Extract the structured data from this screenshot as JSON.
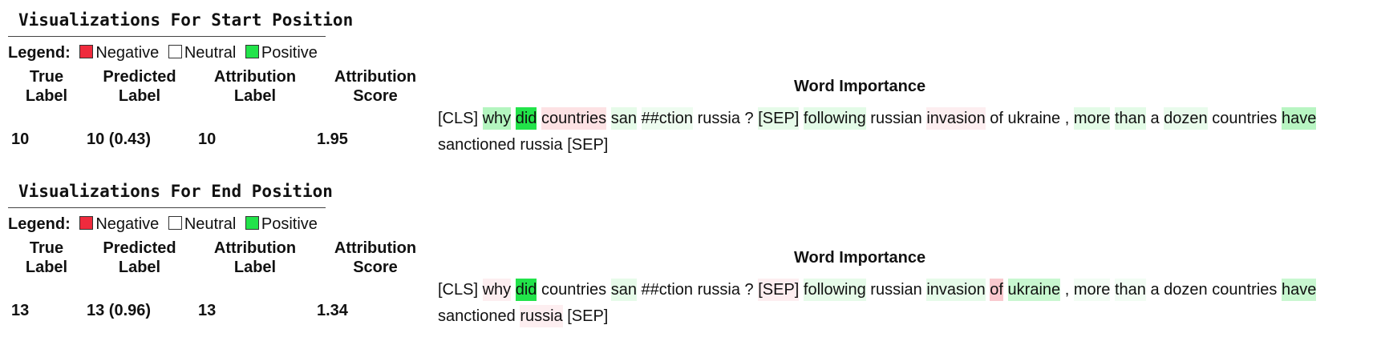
{
  "legend": {
    "label": "Legend:",
    "negative": "Negative",
    "neutral": "Neutral",
    "positive": "Positive",
    "colors": {
      "negative": "#ef2b3d",
      "neutral": "#ffffff",
      "positive": "#22e34a"
    }
  },
  "columns": {
    "true_label": [
      "True",
      "Label"
    ],
    "predicted_label": [
      "Predicted",
      "Label"
    ],
    "attribution_label": [
      "Attribution",
      "Label"
    ],
    "attribution_score": [
      "Attribution",
      "Score"
    ],
    "word_importance": "Word Importance"
  },
  "start": {
    "title": "Visualizations For Start Position",
    "true_label": "10",
    "predicted_label": "10 (0.43)",
    "attribution_label": "10",
    "attribution_score": "1.95",
    "tokens": [
      {
        "t": "[CLS]",
        "c": "#ffffff"
      },
      {
        "t": "why",
        "c": "#b4f5bf"
      },
      {
        "t": "did",
        "c": "#22e34a"
      },
      {
        "t": "countries",
        "c": "#fde2e4"
      },
      {
        "t": "san",
        "c": "#e6fbe9"
      },
      {
        "t": "##ction",
        "c": "#eefcf0"
      },
      {
        "t": "russia",
        "c": "#ffffff"
      },
      {
        "t": "?",
        "c": "#ffffff"
      },
      {
        "t": "[SEP]",
        "c": "#e6fbe9"
      },
      {
        "t": "following",
        "c": "#e3fbe7"
      },
      {
        "t": "russian",
        "c": "#ffffff"
      },
      {
        "t": "invasion",
        "c": "#fdeef0"
      },
      {
        "t": "of",
        "c": "#ffffff"
      },
      {
        "t": "ukraine",
        "c": "#ffffff"
      },
      {
        "t": ",",
        "c": "#ffffff"
      },
      {
        "t": "more",
        "c": "#e3fbe7"
      },
      {
        "t": "than",
        "c": "#e3fbe7"
      },
      {
        "t": "a",
        "c": "#ffffff"
      },
      {
        "t": "dozen",
        "c": "#e9fbec"
      },
      {
        "t": "countries",
        "c": "#ffffff"
      },
      {
        "t": "have",
        "c": "#b8f5c2"
      },
      {
        "t": "sanctioned",
        "c": "#ffffff"
      },
      {
        "t": "russia",
        "c": "#ffffff"
      },
      {
        "t": "[SEP]",
        "c": "#ffffff"
      }
    ]
  },
  "end": {
    "title": "Visualizations For End Position",
    "true_label": "13",
    "predicted_label": "13 (0.96)",
    "attribution_label": "13",
    "attribution_score": "1.34",
    "tokens": [
      {
        "t": "[CLS]",
        "c": "#ffffff"
      },
      {
        "t": "why",
        "c": "#fdeef0"
      },
      {
        "t": "did",
        "c": "#22e34a"
      },
      {
        "t": "countries",
        "c": "#ffffff"
      },
      {
        "t": "san",
        "c": "#e6fbe9"
      },
      {
        "t": "##ction",
        "c": "#ffffff"
      },
      {
        "t": "russia",
        "c": "#ffffff"
      },
      {
        "t": "?",
        "c": "#ffffff"
      },
      {
        "t": "[SEP]",
        "c": "#fdeef0"
      },
      {
        "t": "following",
        "c": "#e6fbe9"
      },
      {
        "t": "russian",
        "c": "#ffffff"
      },
      {
        "t": "invasion",
        "c": "#e6fbe9"
      },
      {
        "t": "of",
        "c": "#f9c9ce"
      },
      {
        "t": "ukraine",
        "c": "#c8f7d0"
      },
      {
        "t": ",",
        "c": "#ffffff"
      },
      {
        "t": "more",
        "c": "#f2fdf4"
      },
      {
        "t": "than",
        "c": "#f2fdf4"
      },
      {
        "t": "a",
        "c": "#ffffff"
      },
      {
        "t": "dozen",
        "c": "#ffffff"
      },
      {
        "t": "countries",
        "c": "#ffffff"
      },
      {
        "t": "have",
        "c": "#c8f7d0"
      },
      {
        "t": "sanctioned",
        "c": "#ffffff"
      },
      {
        "t": "russia",
        "c": "#fdeef0"
      },
      {
        "t": "[SEP]",
        "c": "#ffffff"
      }
    ]
  }
}
